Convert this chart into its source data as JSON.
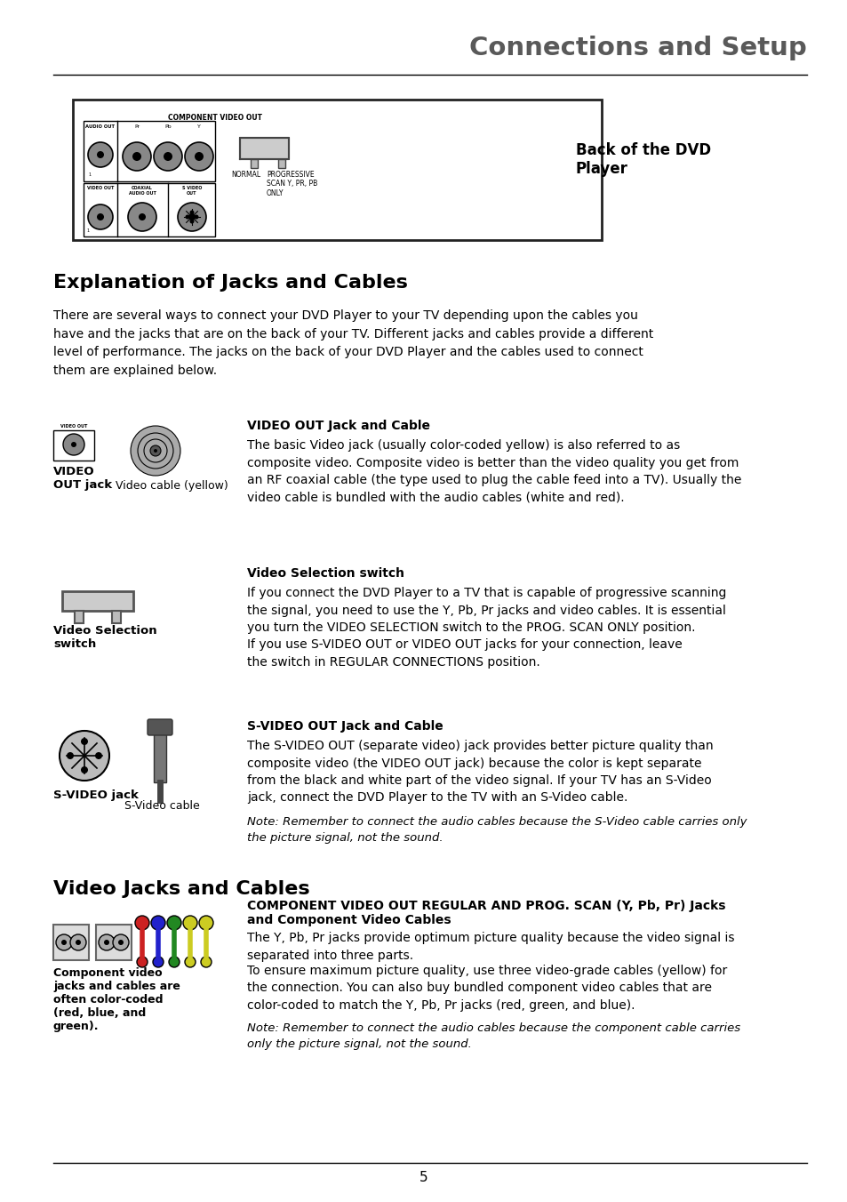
{
  "title": "Connections and Setup",
  "title_color": "#595959",
  "bg_color": "#ffffff",
  "page_number": "5",
  "section1_title": "Explanation of Jacks and Cables",
  "section1_body": "There are several ways to connect your DVD Player to your TV depending upon the cables you\nhave and the jacks that are on the back of your TV. Different jacks and cables provide a different\nlevel of performance. The jacks on the back of your DVD Player and the cables used to connect\nthem are explained below.",
  "back_dvd_label": "Back of the DVD\nPlayer",
  "subsection1_title": "VIDEO OUT Jack and Cable",
  "subsection1_label1": "VIDEO\nOUT jack",
  "subsection1_label2": "Video cable (yellow)",
  "subsection1_body": "The basic Video jack (usually color-coded yellow) is also referred to as\ncomposite video. Composite video is better than the video quality you get from\nan RF coaxial cable (the type used to plug the cable feed into a TV). Usually the\nvideo cable is bundled with the audio cables (white and red).",
  "subsection2_title": "Video Selection switch",
  "subsection2_label1": "Video Selection\nswitch",
  "subsection2_body": "If you connect the DVD Player to a TV that is capable of progressive scanning\nthe signal, you need to use the Y, Pb, Pr jacks and video cables. It is essential\nyou turn the VIDEO SELECTION switch to the PROG. SCAN ONLY position.\nIf you use S-VIDEO OUT or VIDEO OUT jacks for your connection, leave\nthe switch in REGULAR CONNECTIONS position.",
  "subsection3_title": "S-VIDEO OUT Jack and Cable",
  "subsection3_label1": "S-VIDEO jack",
  "subsection3_label2": "S-Video cable",
  "subsection3_body": "The S-VIDEO OUT (separate video) jack provides better picture quality than\ncomposite video (the VIDEO OUT jack) because the color is kept separate\nfrom the black and white part of the video signal. If your TV has an S-Video\njack, connect the DVD Player to the TV with an S-Video cable.",
  "subsection3_note": "Note: Remember to connect the audio cables because the S-Video cable carries only\nthe picture signal, not the sound.",
  "section2_title": "Video Jacks and Cables",
  "subsection4_title_line1": "COMPONENT VIDEO OUT REGULAR AND PROG. SCAN (Y, Pb, Pr) Jacks",
  "subsection4_title_line2": "and Component Video Cables",
  "subsection4_label1": "Component video\njacks and cables are\noften color-coded\n(red, blue, and\ngreen).",
  "subsection4_body1": "The Y, Pb, Pr jacks provide optimum picture quality because the video signal is\nseparated into three parts.",
  "subsection4_body2": "To ensure maximum picture quality, use three video-grade cables (yellow) for\nthe connection. You can also buy bundled component video cables that are\ncolor-coded to match the Y, Pb, Pr jacks (red, green, and blue).",
  "subsection4_note": "Note: Remember to connect the audio cables because the component cable carries\nonly the picture signal, not the sound."
}
